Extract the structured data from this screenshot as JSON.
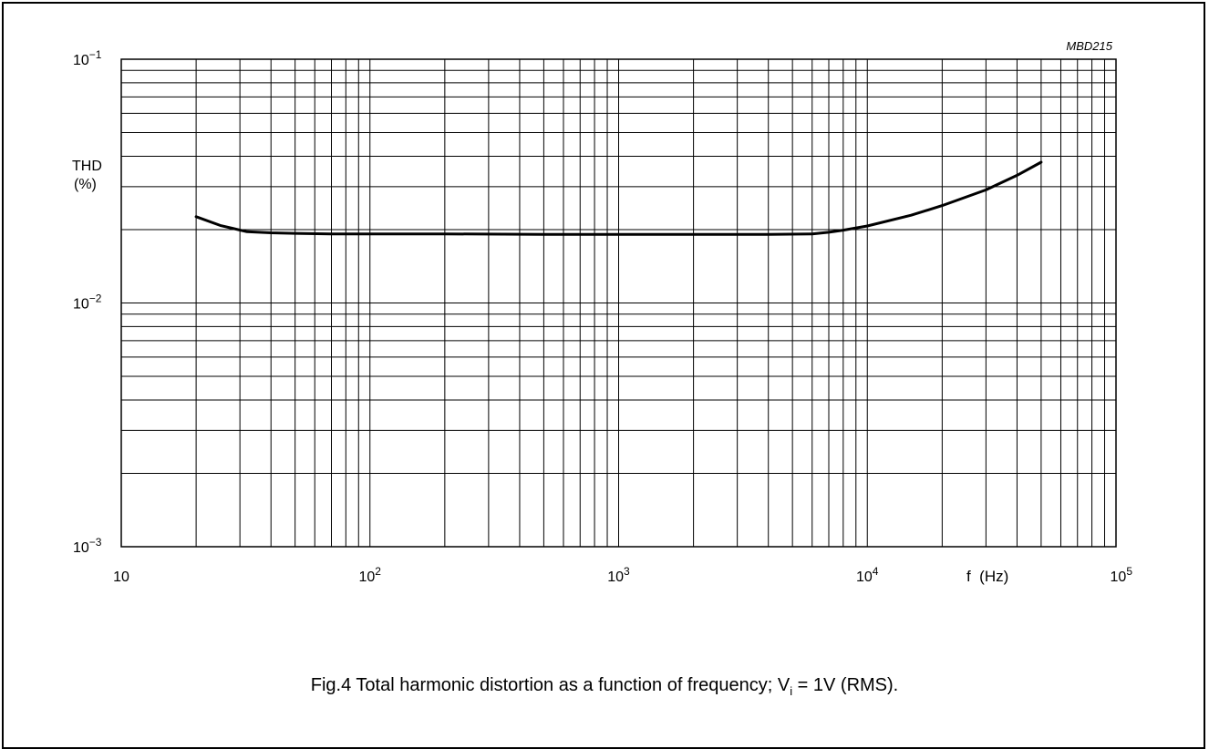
{
  "chart_data": {
    "type": "line",
    "code": "MBD215",
    "ylabel_line1": "THD",
    "ylabel_line2": "(%)",
    "xlabel": "f  (Hz)",
    "x_scale": "log",
    "y_scale": "log",
    "xlim": [
      10,
      100000
    ],
    "ylim": [
      0.001,
      0.1
    ],
    "grid": true,
    "x_ticks": [
      {
        "base": "10",
        "exp": ""
      },
      {
        "base": "10",
        "exp": "2"
      },
      {
        "base": "10",
        "exp": "3"
      },
      {
        "base": "10",
        "exp": "4"
      },
      {
        "base": "10",
        "exp": "5"
      }
    ],
    "y_ticks": [
      {
        "base": "10",
        "exp": "−1"
      },
      {
        "base": "10",
        "exp": "−2"
      },
      {
        "base": "10",
        "exp": "−3"
      }
    ],
    "series": [
      {
        "x": [
          20,
          25,
          32,
          40,
          50,
          70,
          100,
          200,
          500,
          1000,
          2000,
          4000,
          6000,
          7000,
          8000,
          10000,
          15000,
          20000,
          30000,
          40000,
          50000
        ],
        "y": [
          0.0226,
          0.0208,
          0.0196,
          0.0194,
          0.0193,
          0.0192,
          0.0192,
          0.0192,
          0.0191,
          0.0191,
          0.0191,
          0.0191,
          0.0192,
          0.0195,
          0.0199,
          0.0207,
          0.0229,
          0.0251,
          0.0291,
          0.0334,
          0.0378
        ]
      }
    ]
  },
  "caption": {
    "prefix": "Fig.4  Total harmonic distortion as a function of frequency; V",
    "sub": "i",
    "suffix": " = 1V (RMS)."
  }
}
